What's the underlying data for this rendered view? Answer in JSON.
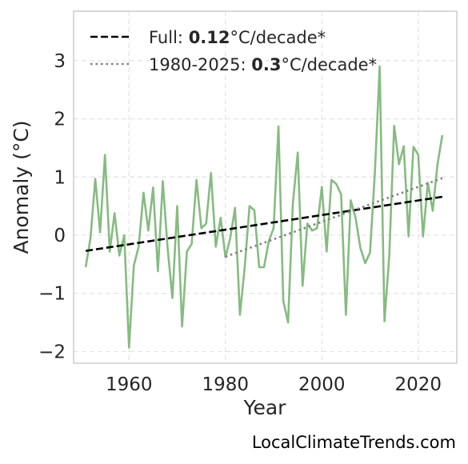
{
  "chart_data": {
    "type": "line",
    "title": "",
    "xlabel": "Year",
    "ylabel": "Anomaly (°C)",
    "xlim": [
      1948.5,
      2028
    ],
    "ylim": [
      -2.2,
      3.85
    ],
    "grid": true,
    "legend_position": "top-left",
    "x_ticks": [
      1960,
      1980,
      2000,
      2020
    ],
    "x_tick_labels": [
      "1960",
      "1980",
      "2000",
      "2020"
    ],
    "y_ticks": [
      -2,
      -1,
      0,
      1,
      2,
      3
    ],
    "y_tick_labels": [
      "−2",
      "−1",
      "0",
      "1",
      "2",
      "3"
    ],
    "colors": {
      "anomaly": "#86bb81",
      "full_trend": "#000000",
      "recent_trend": "#808080",
      "grid": "#e3e3e3",
      "frame": "#cccccc"
    },
    "series": [
      {
        "style": "solid",
        "x": [
          1951,
          1952,
          1953,
          1954,
          1955,
          1956,
          1957,
          1958,
          1959,
          1960,
          1961,
          1962,
          1963,
          1964,
          1965,
          1966,
          1967,
          1968,
          1969,
          1970,
          1971,
          1972,
          1973,
          1974,
          1975,
          1976,
          1977,
          1978,
          1979,
          1980,
          1981,
          1982,
          1983,
          1984,
          1985,
          1986,
          1987,
          1988,
          1989,
          1990,
          1991,
          1992,
          1993,
          1994,
          1995,
          1996,
          1997,
          1998,
          1999,
          2000,
          2001,
          2002,
          2003,
          2004,
          2005,
          2006,
          2007,
          2008,
          2009,
          2010,
          2011,
          2012,
          2013,
          2014,
          2015,
          2016,
          2017,
          2018,
          2019,
          2020,
          2021,
          2022,
          2023,
          2024,
          2025
        ],
        "values": [
          -0.55,
          -0.05,
          0.97,
          0.05,
          1.38,
          -0.28,
          0.38,
          -0.35,
          0.0,
          -1.93,
          -0.52,
          -0.2,
          0.73,
          0.08,
          0.82,
          -0.62,
          0.93,
          -0.22,
          -1.08,
          0.5,
          -1.57,
          -0.28,
          -0.15,
          0.95,
          0.12,
          0.2,
          1.07,
          -0.2,
          0.3,
          -0.38,
          -0.05,
          0.47,
          -1.37,
          -0.55,
          0.5,
          0.43,
          -0.55,
          -0.55,
          -0.1,
          0.12,
          1.87,
          -1.13,
          -1.5,
          0.55,
          1.42,
          -0.87,
          0.2,
          0.08,
          0.12,
          0.83,
          -0.28,
          0.95,
          0.88,
          0.7,
          -1.37,
          0.6,
          0.3,
          -0.22,
          -0.48,
          -0.3,
          1.08,
          2.9,
          -1.48,
          -0.35,
          1.88,
          1.22,
          1.53,
          -0.02,
          1.52,
          1.38,
          -0.02,
          0.9,
          0.42,
          1.22,
          1.72
        ]
      },
      {
        "name": "Full",
        "style": "dashed",
        "x": [
          1951,
          2025
        ],
        "values": [
          -0.27,
          0.66
        ],
        "rate": "0.12",
        "unit": "°C/decade*"
      },
      {
        "name": "1980-2025",
        "style": "dotted",
        "x": [
          1980,
          2025
        ],
        "values": [
          -0.37,
          0.98
        ],
        "rate": "0.3",
        "unit": "°C/decade*"
      }
    ]
  },
  "watermark": "LocalClimateTrends.com"
}
